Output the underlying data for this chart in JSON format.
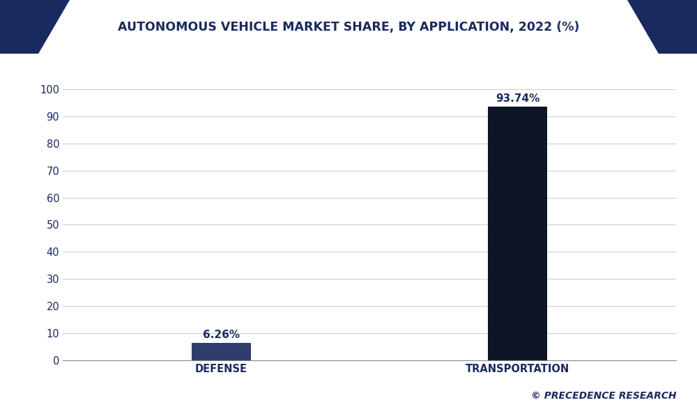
{
  "title": "AUTONOMOUS VEHICLE MARKET SHARE, BY APPLICATION, 2022 (%)",
  "categories": [
    "DEFENSE",
    "TRANSPORTATION"
  ],
  "values": [
    6.26,
    93.74
  ],
  "labels": [
    "6.26%",
    "93.74%"
  ],
  "bar_color_defense": "#2e3d6b",
  "bar_color_transport": "#0d1527",
  "background_color": "#ffffff",
  "plot_bg_color": "#ffffff",
  "title_color": "#1a2a5e",
  "tick_label_color": "#1a2a5e",
  "grid_color": "#d0d0d0",
  "banner_bg": "#f5f5f5",
  "banner_triangle_color": "#1a2a5e",
  "ylim": [
    0,
    107
  ],
  "yticks": [
    0,
    10,
    20,
    30,
    40,
    50,
    60,
    70,
    80,
    90,
    100
  ],
  "watermark": "© PRECEDENCE RESEARCH",
  "title_fontsize": 12.5,
  "label_fontsize": 11,
  "tick_fontsize": 10.5,
  "watermark_fontsize": 10,
  "bottom_line_color": "#1a2a5e"
}
